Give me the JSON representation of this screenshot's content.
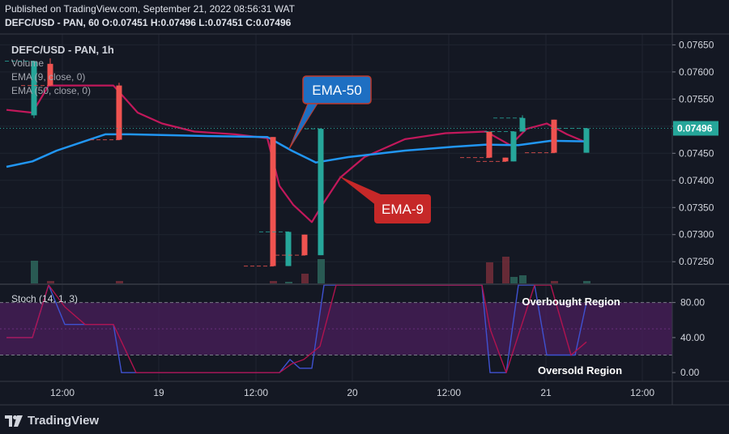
{
  "header": {
    "published": "Published on TradingView.com, September 21, 2022 08:56:31 WAT",
    "ohlc": "DEFC/USD - PAN, 60  O:0.07451 H:0.07496 L:0.07451 C:0.07496"
  },
  "brand": "TradingView",
  "chart_data": [
    {
      "type": "candlestick",
      "title": "DEFC/USD - PAN, 1h",
      "legend": [
        "Volume",
        "EMA (9, close, 0)",
        "EMA (50, close, 0)"
      ],
      "y_ticks": [
        "0.07650",
        "0.07600",
        "0.07550",
        "0.07500",
        "0.07450",
        "0.07400",
        "0.07350",
        "0.07300",
        "0.07250"
      ],
      "ylim": [
        0.0721,
        0.0767
      ],
      "last_price": "0.07496",
      "x_ticks": [
        "12:00",
        "19",
        "12:00",
        "20",
        "12:00",
        "21",
        "12:00"
      ],
      "candles": [
        {
          "t": 42,
          "o": 0.0752,
          "h": 0.0762,
          "l": 0.07515,
          "c": 0.0762,
          "vol": 28
        },
        {
          "t": 62,
          "o": 0.07615,
          "h": 0.07625,
          "l": 0.07575,
          "c": 0.07575,
          "vol": 3
        },
        {
          "t": 147,
          "o": 0.07575,
          "h": 0.0758,
          "l": 0.07475,
          "c": 0.07475,
          "vol": 3
        },
        {
          "t": 337,
          "o": 0.0748,
          "h": 0.0748,
          "l": 0.07242,
          "c": 0.07242,
          "vol": 3
        },
        {
          "t": 356,
          "o": 0.07242,
          "h": 0.07305,
          "l": 0.07242,
          "c": 0.07305,
          "vol": 2
        },
        {
          "t": 376,
          "o": 0.073,
          "h": 0.073,
          "l": 0.07262,
          "c": 0.07262,
          "vol": 12
        },
        {
          "t": 396,
          "o": 0.07262,
          "h": 0.07495,
          "l": 0.07262,
          "c": 0.07495,
          "vol": 30
        },
        {
          "t": 604,
          "o": 0.0749,
          "h": 0.0749,
          "l": 0.07442,
          "c": 0.07442,
          "vol": 26
        },
        {
          "t": 624,
          "o": 0.07442,
          "h": 0.07442,
          "l": 0.07435,
          "c": 0.07435,
          "vol": 33
        },
        {
          "t": 634,
          "o": 0.07435,
          "h": 0.0749,
          "l": 0.07435,
          "c": 0.0749,
          "vol": 8
        },
        {
          "t": 645,
          "o": 0.0749,
          "h": 0.0752,
          "l": 0.0749,
          "c": 0.07515,
          "vol": 10
        },
        {
          "t": 684,
          "o": 0.07512,
          "h": 0.07512,
          "l": 0.07451,
          "c": 0.07451,
          "vol": 3
        },
        {
          "t": 724,
          "o": 0.07451,
          "h": 0.07496,
          "l": 0.07451,
          "c": 0.07496,
          "vol": 3
        }
      ],
      "series": [
        {
          "name": "EMA-9",
          "color": "#c2185b",
          "points": [
            [
              8,
              0.0753
            ],
            [
              40,
              0.07525
            ],
            [
              60,
              0.07575
            ],
            [
              100,
              0.07575
            ],
            [
              140,
              0.07575
            ],
            [
              170,
              0.07525
            ],
            [
              200,
              0.07505
            ],
            [
              240,
              0.0749
            ],
            [
              290,
              0.07485
            ],
            [
              330,
              0.07478
            ],
            [
              345,
              0.0739
            ],
            [
              362,
              0.07355
            ],
            [
              385,
              0.07323
            ],
            [
              398,
              0.07355
            ],
            [
              420,
              0.07405
            ],
            [
              450,
              0.07443
            ],
            [
              500,
              0.07476
            ],
            [
              550,
              0.07487
            ],
            [
              600,
              0.0749
            ],
            [
              630,
              0.07465
            ],
            [
              650,
              0.07495
            ],
            [
              675,
              0.07505
            ],
            [
              700,
              0.07485
            ],
            [
              724,
              0.0747
            ]
          ]
        },
        {
          "name": "EMA-50",
          "color": "#2196f3",
          "points": [
            [
              8,
              0.07425
            ],
            [
              40,
              0.07435
            ],
            [
              70,
              0.07455
            ],
            [
              100,
              0.0747
            ],
            [
              130,
              0.07485
            ],
            [
              160,
              0.07485
            ],
            [
              250,
              0.07482
            ],
            [
              330,
              0.0748
            ],
            [
              360,
              0.07455
            ],
            [
              390,
              0.07433
            ],
            [
              430,
              0.07443
            ],
            [
              500,
              0.07455
            ],
            [
              560,
              0.07462
            ],
            [
              600,
              0.07466
            ],
            [
              640,
              0.07465
            ],
            [
              680,
              0.07473
            ],
            [
              724,
              0.07472
            ]
          ]
        }
      ],
      "annotations": [
        "EMA-50",
        "EMA-9"
      ]
    },
    {
      "type": "line",
      "title": "Stoch (14, 1, 3)",
      "y_ticks": [
        "80.00",
        "40.00",
        "0.00"
      ],
      "ylim": [
        -10,
        100
      ],
      "levels": {
        "overbought": 80,
        "oversold": 20
      },
      "band_color": "#4a1d5c",
      "annotations": [
        "Overbought Region",
        "Oversold Region"
      ],
      "series": [
        {
          "name": "K",
          "color": "#3f51d0",
          "points": [
            [
              8,
              40
            ],
            [
              40,
              40
            ],
            [
              60,
              100
            ],
            [
              80,
              55
            ],
            [
              105,
              55
            ],
            [
              140,
              55
            ],
            [
              150,
              0
            ],
            [
              190,
              0
            ],
            [
              320,
              0
            ],
            [
              345,
              0
            ],
            [
              358,
              15
            ],
            [
              370,
              5
            ],
            [
              385,
              5
            ],
            [
              400,
              100
            ],
            [
              430,
              100
            ],
            [
              595,
              100
            ],
            [
              605,
              0
            ],
            [
              625,
              0
            ],
            [
              640,
              100
            ],
            [
              660,
              100
            ],
            [
              675,
              20
            ],
            [
              695,
              20
            ],
            [
              710,
              20
            ],
            [
              724,
              80
            ]
          ]
        },
        {
          "name": "D",
          "color": "#b0134f",
          "points": [
            [
              8,
              40
            ],
            [
              40,
              40
            ],
            [
              60,
              100
            ],
            [
              80,
              75
            ],
            [
              105,
              55
            ],
            [
              140,
              55
            ],
            [
              168,
              0
            ],
            [
              320,
              0
            ],
            [
              345,
              0
            ],
            [
              360,
              10
            ],
            [
              375,
              15
            ],
            [
              395,
              30
            ],
            [
              415,
              100
            ],
            [
              595,
              100
            ],
            [
              605,
              50
            ],
            [
              625,
              0
            ],
            [
              660,
              100
            ],
            [
              680,
              100
            ],
            [
              705,
              20
            ],
            [
              724,
              35
            ]
          ]
        }
      ]
    }
  ]
}
